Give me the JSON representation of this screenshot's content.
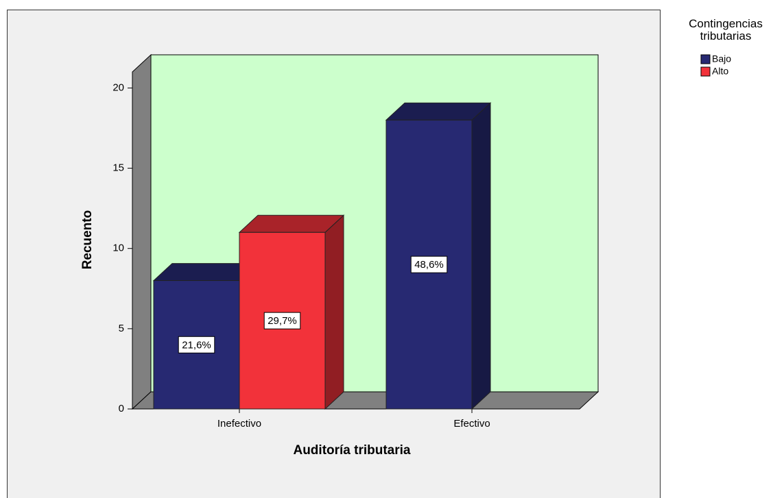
{
  "chart_data": {
    "type": "bar3d",
    "x_label": "Auditoría tributaria",
    "y_label": "Recuento",
    "legend_title": "Contingencias tributarias",
    "categories": [
      "Inefectivo",
      "Efectivo"
    ],
    "series": [
      {
        "name": "Bajo",
        "color": "#272972",
        "values": [
          8,
          18
        ],
        "percentages": [
          {
            "value": 21.6,
            "label": "21,6%"
          },
          {
            "value": 48.6,
            "label": "48,6%"
          }
        ]
      },
      {
        "name": "Alto",
        "color": "#f2323a",
        "values": [
          11,
          null
        ],
        "percentages": [
          {
            "value": 29.7,
            "label": "29,7%"
          },
          null
        ]
      }
    ],
    "ylim": [
      0,
      21
    ],
    "yticks": [
      0,
      5,
      10,
      15,
      20
    ],
    "wall_color": "#ccffcc"
  }
}
